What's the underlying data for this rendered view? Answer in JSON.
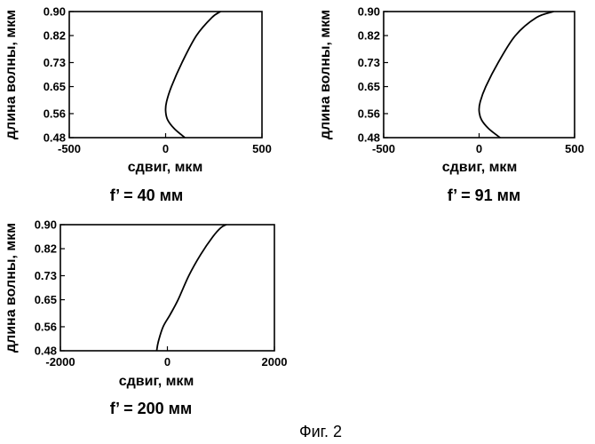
{
  "figure": {
    "caption": "Фиг. 2"
  },
  "chart_data": [
    {
      "type": "line",
      "subtitle": "f’ = 40 мм",
      "xlabel": "сдвиг, мкм",
      "ylabel": "длина волны, мкм",
      "xlim": [
        -500,
        500
      ],
      "ylim": [
        0.48,
        0.9
      ],
      "xticks": [
        -500,
        0,
        500
      ],
      "yticks": [
        "0.90",
        "0.82",
        "0.73",
        "0.65",
        "0.56",
        "0.48"
      ],
      "grid": false,
      "series": [
        {
          "x": [
            100,
            45,
            10,
            0,
            5,
            30,
            85,
            160,
            240,
            285
          ],
          "y": [
            0.48,
            0.51,
            0.54,
            0.57,
            0.6,
            0.65,
            0.73,
            0.82,
            0.88,
            0.9
          ]
        }
      ]
    },
    {
      "type": "line",
      "subtitle": "f’ = 91 мм",
      "xlabel": "сдвиг, мкм",
      "ylabel": "длина волны, мкм",
      "xlim": [
        -500,
        500
      ],
      "ylim": [
        0.48,
        0.9
      ],
      "xticks": [
        -500,
        0,
        500
      ],
      "yticks": [
        "0.90",
        "0.82",
        "0.73",
        "0.65",
        "0.56",
        "0.48"
      ],
      "grid": false,
      "series": [
        {
          "x": [
            110,
            50,
            12,
            0,
            6,
            35,
            100,
            190,
            300,
            390
          ],
          "y": [
            0.48,
            0.51,
            0.54,
            0.57,
            0.6,
            0.65,
            0.73,
            0.82,
            0.88,
            0.9
          ]
        }
      ]
    },
    {
      "type": "line",
      "subtitle": "f’ = 200 мм",
      "xlabel": "сдвиг, мкм",
      "ylabel": "длина волны, мкм",
      "xlim": [
        -2000,
        2000
      ],
      "ylim": [
        0.48,
        0.9
      ],
      "xticks": [
        -2000,
        0,
        2000
      ],
      "yticks": [
        "0.90",
        "0.82",
        "0.73",
        "0.65",
        "0.56",
        "0.48"
      ],
      "grid": false,
      "series": [
        {
          "x": [
            -200,
            -170,
            -80,
            50,
            200,
            400,
            620,
            850,
            1000,
            1100
          ],
          "y": [
            0.48,
            0.51,
            0.56,
            0.6,
            0.65,
            0.73,
            0.8,
            0.86,
            0.89,
            0.9
          ]
        }
      ]
    }
  ]
}
